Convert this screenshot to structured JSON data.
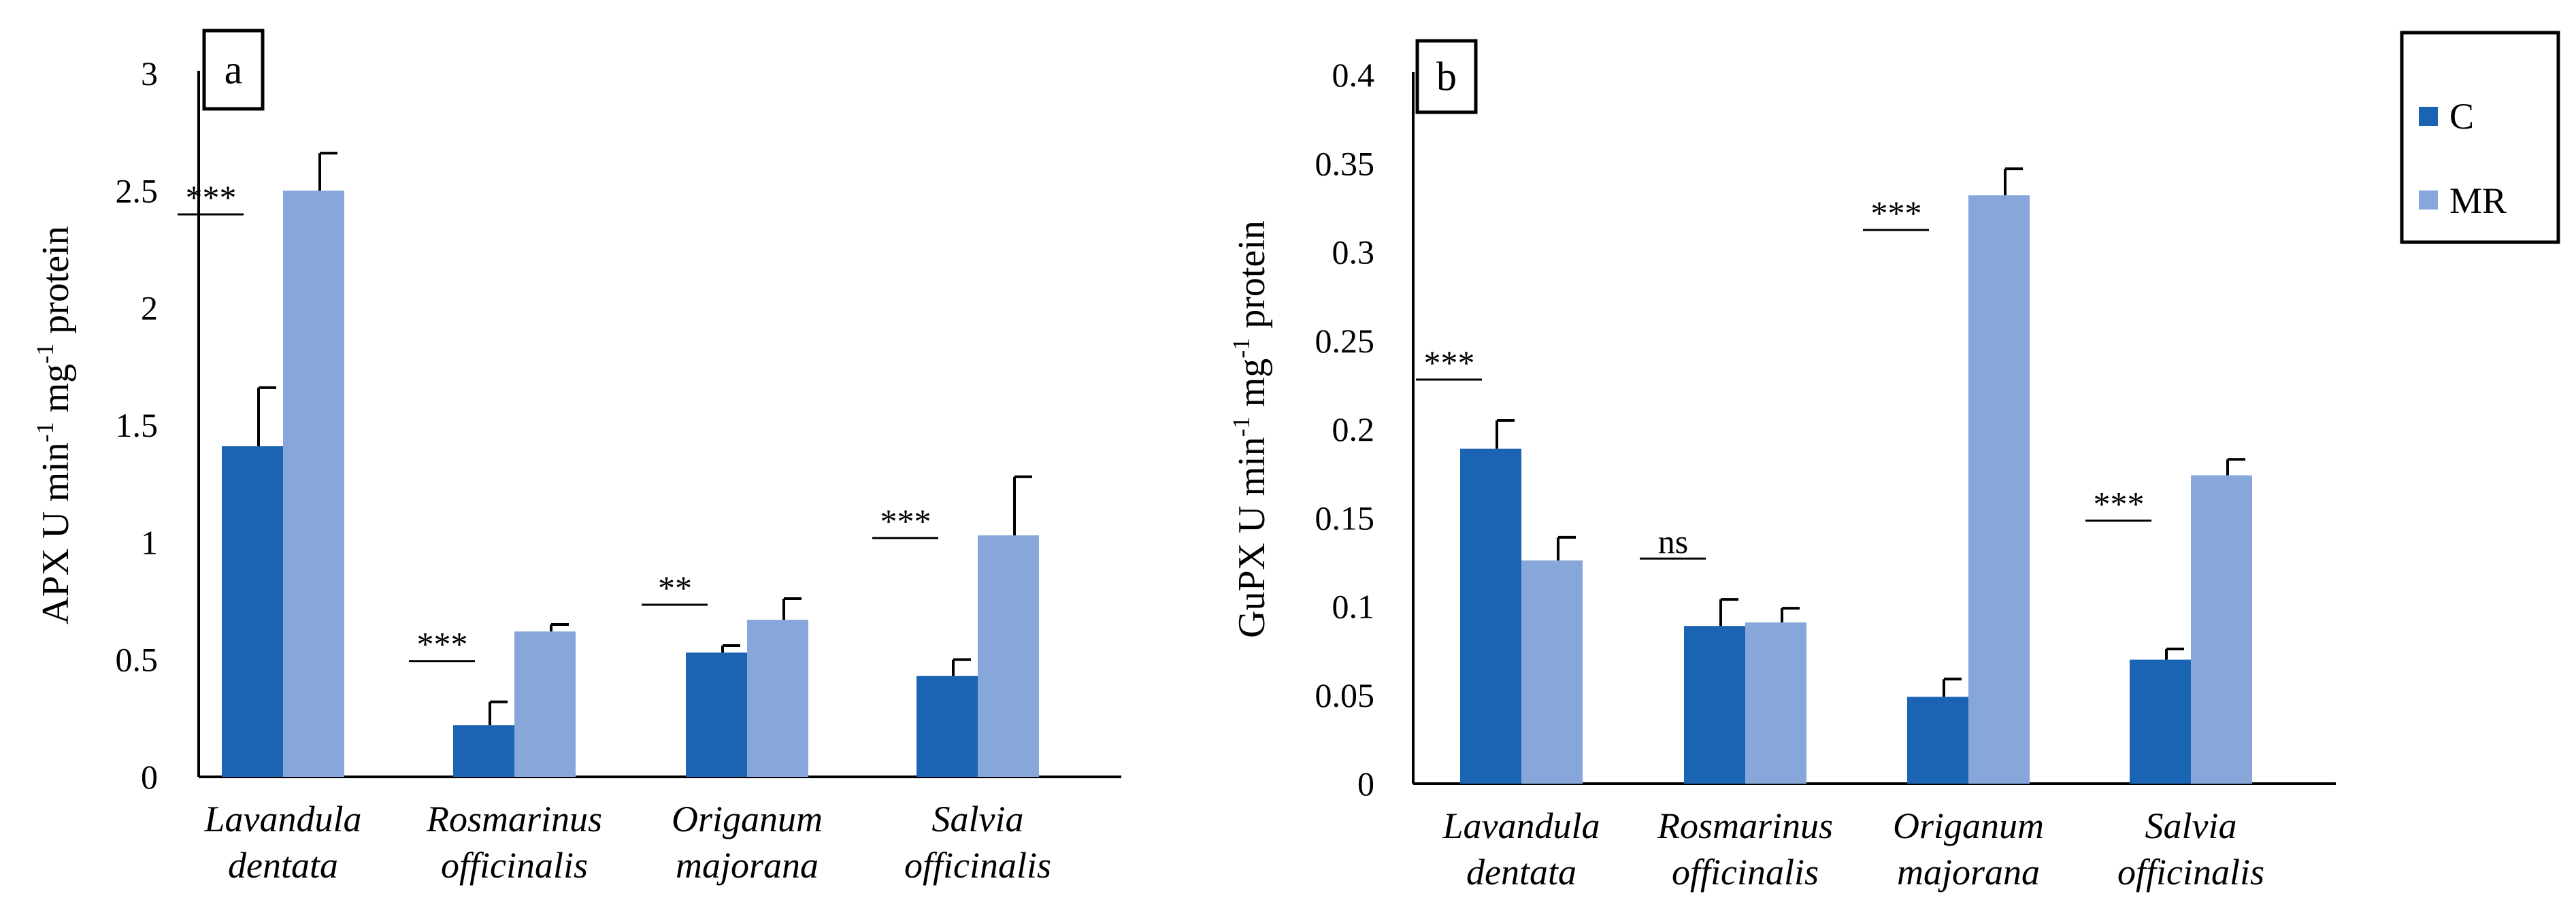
{
  "legend": {
    "items": [
      {
        "label": "C",
        "color": "#1b63b3"
      },
      {
        "label": "MR",
        "color": "#87a6d9"
      }
    ]
  },
  "chart_data": [
    {
      "type": "bar",
      "panel_label": "a",
      "ylabel": {
        "prefix": "APX U min",
        "sup1": "-1",
        "mid": " mg",
        "sup2": "-1",
        "suffix": " protein"
      },
      "ylim": [
        0,
        3
      ],
      "yticks": [
        "0",
        "0.5",
        "1",
        "1.5",
        "2",
        "2.5",
        "3"
      ],
      "categories": [
        {
          "line1": "Lavandula",
          "line2": "dentata"
        },
        {
          "line1": "Rosmarinus",
          "line2": "officinalis"
        },
        {
          "line1": "Origanum",
          "line2": "majorana"
        },
        {
          "line1": "Salvia",
          "line2": "officinalis"
        }
      ],
      "series": [
        {
          "name": "C",
          "color": "#1b63b3",
          "values": [
            1.41,
            0.22,
            0.53,
            0.43
          ],
          "errors": [
            0.25,
            0.1,
            0.03,
            0.07
          ]
        },
        {
          "name": "MR",
          "color": "#87a6d9",
          "values": [
            2.5,
            0.62,
            0.67,
            1.03
          ],
          "errors": [
            0.16,
            0.03,
            0.09,
            0.25
          ]
        }
      ],
      "significance": [
        "***",
        "***",
        "**",
        "***"
      ],
      "grid": false
    },
    {
      "type": "bar",
      "panel_label": "b",
      "ylabel": {
        "prefix": "GuPX U min",
        "sup1": "-1",
        "mid": " mg",
        "sup2": "-1",
        "suffix": " protein"
      },
      "ylim": [
        0,
        0.4
      ],
      "yticks": [
        "0",
        "0.05",
        "0.1",
        "0.15",
        "0.2",
        "0.25",
        "0.3",
        "0.35",
        "0.4"
      ],
      "categories": [
        {
          "line1": "Lavandula",
          "line2": "dentata"
        },
        {
          "line1": "Rosmarinus",
          "line2": "officinalis"
        },
        {
          "line1": "Origanum",
          "line2": "majorana"
        },
        {
          "line1": "Salvia",
          "line2": "officinalis"
        }
      ],
      "series": [
        {
          "name": "C",
          "color": "#1b63b3",
          "values": [
            0.189,
            0.089,
            0.049,
            0.07
          ],
          "errors": [
            0.016,
            0.015,
            0.01,
            0.006
          ]
        },
        {
          "name": "MR",
          "color": "#87a6d9",
          "values": [
            0.126,
            0.091,
            0.332,
            0.174
          ],
          "errors": [
            0.013,
            0.008,
            0.015,
            0.009
          ]
        }
      ],
      "significance": [
        "***",
        "ns",
        "***",
        "***"
      ],
      "grid": false
    }
  ]
}
